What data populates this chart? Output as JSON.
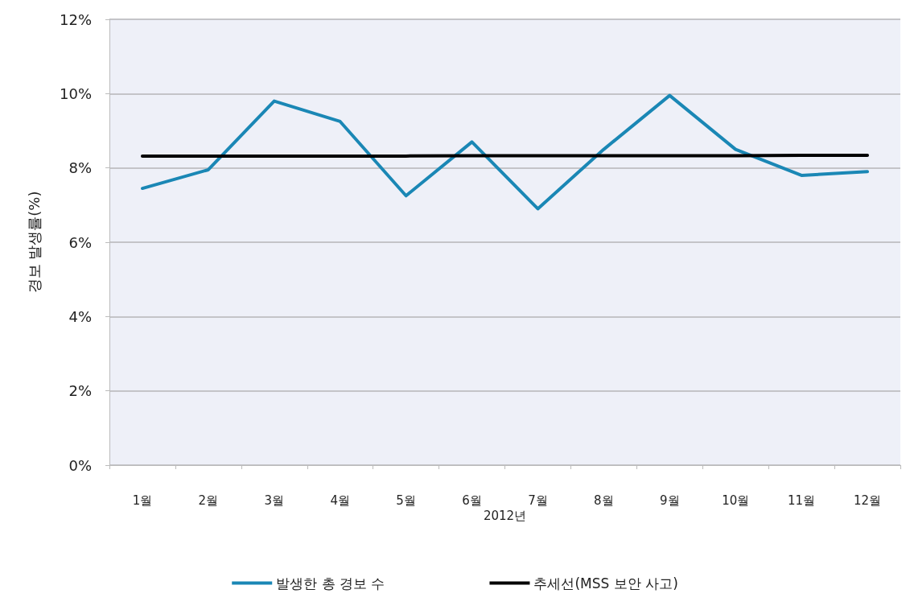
{
  "chart_data": {
    "type": "line",
    "ylabel": "경보 발생률(%)",
    "xlabel": "2012년",
    "categories": [
      "1월",
      "2월",
      "3월",
      "4월",
      "5월",
      "6월",
      "7월",
      "8월",
      "9월",
      "10월",
      "11월",
      "12월"
    ],
    "series": [
      {
        "name": "발생한 총 경보 수",
        "color": "#1a87b5",
        "values": [
          7.45,
          7.95,
          9.8,
          9.25,
          7.25,
          8.7,
          6.9,
          8.5,
          9.95,
          8.5,
          7.8,
          7.9
        ]
      },
      {
        "name": "추세선(MSS 보안 사고)",
        "color": "#000000",
        "values": [
          8.32,
          8.32,
          8.32,
          8.32,
          8.32,
          8.33,
          8.33,
          8.33,
          8.33,
          8.33,
          8.34,
          8.34
        ]
      }
    ],
    "ylim": [
      0,
      12
    ],
    "yticks": [
      {
        "value": 0,
        "label": "0%"
      },
      {
        "value": 2,
        "label": "2%"
      },
      {
        "value": 4,
        "label": "4%"
      },
      {
        "value": 6,
        "label": "6%"
      },
      {
        "value": 8,
        "label": "8%"
      },
      {
        "value": 10,
        "label": "10%"
      },
      {
        "value": 12,
        "label": "12%"
      }
    ],
    "grid": "y",
    "legend": "bottom",
    "marker": "none",
    "line_style": "solid"
  }
}
